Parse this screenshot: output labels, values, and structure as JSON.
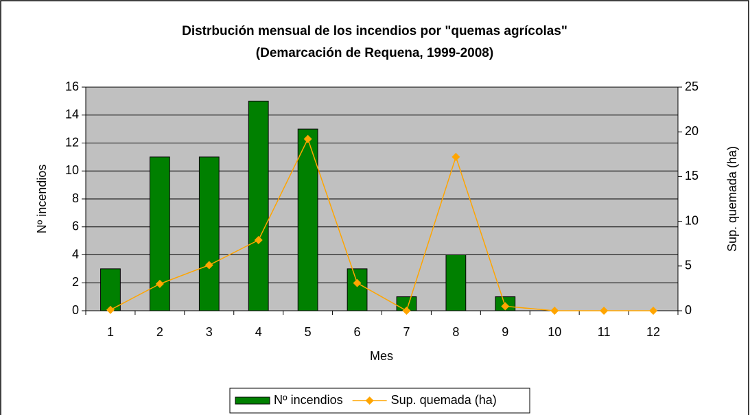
{
  "chart_data": {
    "type": "bar",
    "title": "Distrbución mensual de los incendios por \"quemas agrícolas\"",
    "subtitle": "(Demarcación de Requena, 1999-2008)",
    "x_label": "Mes",
    "y_label": "Nº incendios",
    "y2_label": "Sup. quemada (ha)",
    "categories": [
      "1",
      "2",
      "3",
      "4",
      "5",
      "6",
      "7",
      "8",
      "9",
      "10",
      "11",
      "12"
    ],
    "series": [
      {
        "name": "Nº incendios",
        "type": "bar",
        "color": "#008000",
        "values": [
          3,
          11,
          11,
          15,
          13,
          3,
          1,
          4,
          1,
          0,
          0,
          0
        ]
      },
      {
        "name": "Sup. quemada (ha)",
        "type": "line",
        "axis": "y2",
        "color": "#ffa500",
        "values": [
          0.1,
          3,
          5.1,
          7.9,
          19.2,
          3.1,
          0,
          17.2,
          0.5,
          0,
          0,
          0
        ]
      }
    ],
    "ylim": [
      0,
      16
    ],
    "yticks": [
      0,
      2,
      4,
      6,
      8,
      10,
      12,
      14,
      16
    ],
    "y2lim": [
      0,
      25
    ],
    "y2ticks": [
      0,
      5,
      10,
      15,
      20,
      25
    ],
    "grid": true,
    "legend": "bottom"
  }
}
